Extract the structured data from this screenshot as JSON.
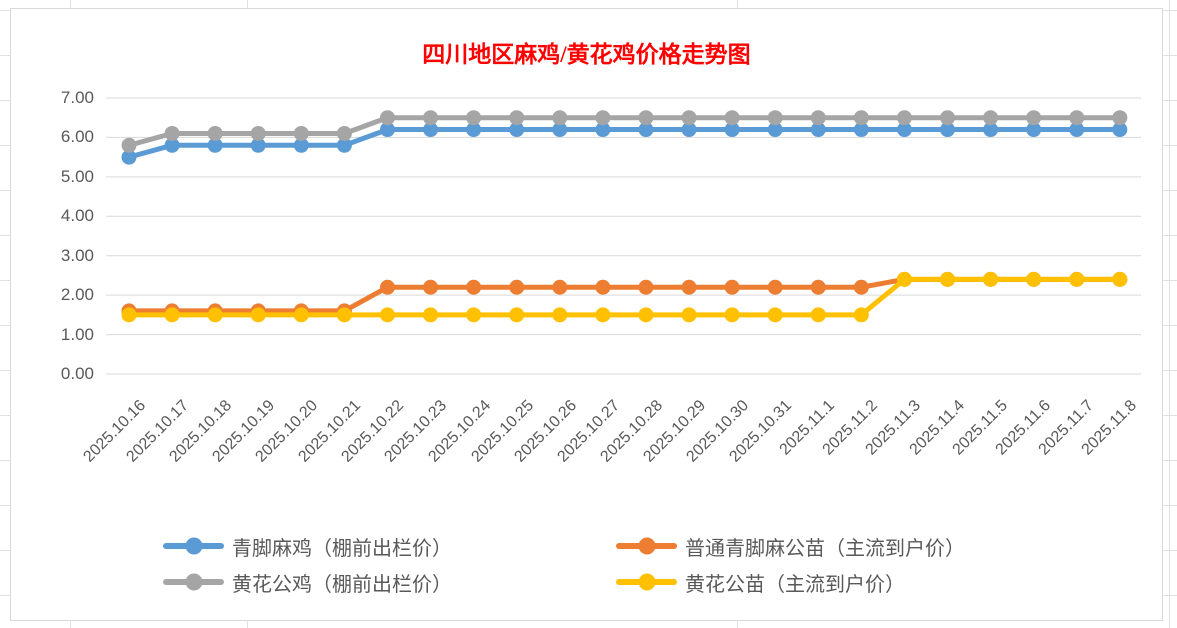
{
  "title": "四川地区麻鸡/黄花鸡价格走势图",
  "colors": {
    "title": "#FF0000",
    "axis_text": "#595959",
    "gridline": "#D9D9D9",
    "chart_border": "#D9D9D9",
    "sheet_line": "#E0E0E0",
    "background": "#FFFFFF"
  },
  "chart_data": {
    "type": "line",
    "title": "四川地区麻鸡/黄花鸡价格走势图",
    "xlabel": "",
    "ylabel": "",
    "ylim": [
      0,
      7
    ],
    "y_tick_step": 1,
    "y_ticks": [
      "7.00",
      "6.00",
      "5.00",
      "4.00",
      "3.00",
      "2.00",
      "1.00",
      "0.00"
    ],
    "grid": true,
    "legend_position": "bottom",
    "marker": "circle",
    "categories": [
      "2025.10.16",
      "2025.10.17",
      "2025.10.18",
      "2025.10.19",
      "2025.10.20",
      "2025.10.21",
      "2025.10.22",
      "2025.10.23",
      "2025.10.24",
      "2025.10.25",
      "2025.10.26",
      "2025.10.27",
      "2025.10.28",
      "2025.10.29",
      "2025.10.30",
      "2025.10.31",
      "2025.11.1",
      "2025.11.2",
      "2025.11.3",
      "2025.11.4",
      "2025.11.5",
      "2025.11.6",
      "2025.11.7",
      "2025.11.8"
    ],
    "series": [
      {
        "name": "青脚麻鸡（棚前出栏价）",
        "color": "#5B9BD5",
        "values": [
          5.5,
          5.8,
          5.8,
          5.8,
          5.8,
          5.8,
          6.2,
          6.2,
          6.2,
          6.2,
          6.2,
          6.2,
          6.2,
          6.2,
          6.2,
          6.2,
          6.2,
          6.2,
          6.2,
          6.2,
          6.2,
          6.2,
          6.2,
          6.2
        ]
      },
      {
        "name": "普通青脚麻公苗（主流到户价）",
        "color": "#ED7D31",
        "values": [
          1.6,
          1.6,
          1.6,
          1.6,
          1.6,
          1.6,
          2.2,
          2.2,
          2.2,
          2.2,
          2.2,
          2.2,
          2.2,
          2.2,
          2.2,
          2.2,
          2.2,
          2.2,
          2.4,
          2.4,
          2.4,
          2.4,
          2.4,
          2.4
        ]
      },
      {
        "name": "黄花公鸡（棚前出栏价）",
        "color": "#A5A5A5",
        "values": [
          5.8,
          6.1,
          6.1,
          6.1,
          6.1,
          6.1,
          6.5,
          6.5,
          6.5,
          6.5,
          6.5,
          6.5,
          6.5,
          6.5,
          6.5,
          6.5,
          6.5,
          6.5,
          6.5,
          6.5,
          6.5,
          6.5,
          6.5,
          6.5
        ]
      },
      {
        "name": "黄花公苗（主流到户价）",
        "color": "#FFC000",
        "values": [
          1.5,
          1.5,
          1.5,
          1.5,
          1.5,
          1.5,
          1.5,
          1.5,
          1.5,
          1.5,
          1.5,
          1.5,
          1.5,
          1.5,
          1.5,
          1.5,
          1.5,
          1.5,
          2.4,
          2.4,
          2.4,
          2.4,
          2.4,
          2.4
        ]
      }
    ]
  }
}
